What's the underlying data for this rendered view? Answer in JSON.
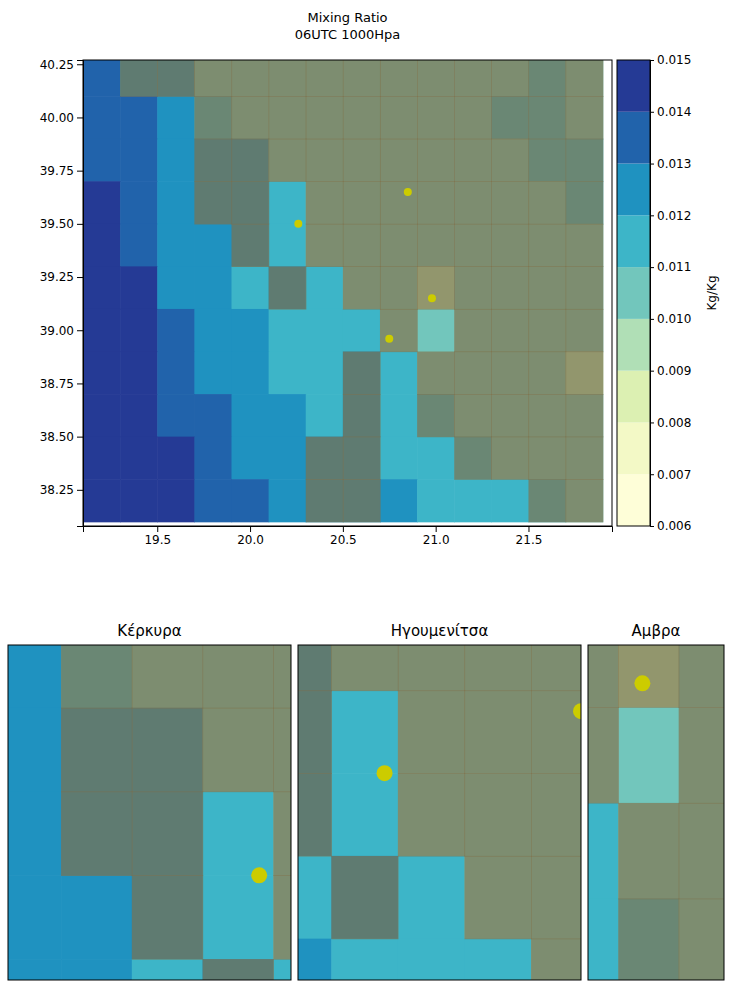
{
  "chart_data": {
    "type": "contourf_map",
    "title": "Mixing Ratio",
    "subtitle": "06UTC 1000Hpa",
    "xlim": [
      19.1,
      21.95
    ],
    "ylim": [
      38.08,
      40.27
    ],
    "xticks": [
      {
        "value": 19.5,
        "label": "19.5"
      },
      {
        "value": 20.0,
        "label": "20.0"
      },
      {
        "value": 20.5,
        "label": "20.5"
      },
      {
        "value": 21.0,
        "label": "21.0"
      },
      {
        "value": 21.5,
        "label": "21.5"
      }
    ],
    "yticks": [
      {
        "value": 38.25,
        "label": "38.25"
      },
      {
        "value": 38.5,
        "label": "38.50"
      },
      {
        "value": 38.75,
        "label": "38.75"
      },
      {
        "value": 39.0,
        "label": "39.00"
      },
      {
        "value": 39.25,
        "label": "39.25"
      },
      {
        "value": 39.5,
        "label": "39.50"
      },
      {
        "value": 39.75,
        "label": "39.75"
      },
      {
        "value": 40.0,
        "label": "40.00"
      },
      {
        "value": 40.25,
        "label": "40.25"
      }
    ],
    "x": [
      19.2,
      19.4,
      19.6,
      19.8,
      20.0,
      20.2,
      20.4,
      20.6,
      20.8,
      21.0,
      21.2,
      21.4,
      21.6,
      21.8
    ],
    "y": [
      40.2,
      40.0,
      39.8,
      39.6,
      39.4,
      39.2,
      39.0,
      38.8,
      38.6,
      38.4,
      38.2
    ],
    "cells": [
      [
        0.0135,
        0.0125,
        0.0125,
        0.0105,
        0.0105,
        0.0105,
        0.0105,
        0.0105,
        0.0105,
        0.0105,
        0.0105,
        0.0105,
        0.0115,
        0.0105
      ],
      [
        0.0135,
        0.0135,
        0.0125,
        0.0115,
        0.0105,
        0.0105,
        0.0105,
        0.0105,
        0.0105,
        0.0105,
        0.0105,
        0.0115,
        0.0115,
        0.0105
      ],
      [
        0.0135,
        0.0135,
        0.0125,
        0.0125,
        0.0125,
        0.0105,
        0.0105,
        0.0105,
        0.0105,
        0.0105,
        0.0105,
        0.0105,
        0.0115,
        0.0115
      ],
      [
        0.0145,
        0.0135,
        0.0125,
        0.0125,
        0.0125,
        0.0115,
        0.0105,
        0.0105,
        0.0105,
        0.0105,
        0.0105,
        0.0105,
        0.0105,
        0.0115
      ],
      [
        0.0145,
        0.0135,
        0.0125,
        0.0125,
        0.0125,
        0.0115,
        0.0105,
        0.0105,
        0.0105,
        0.0105,
        0.0105,
        0.0105,
        0.0105,
        0.0105
      ],
      [
        0.0145,
        0.0145,
        0.0125,
        0.0125,
        0.0115,
        0.0125,
        0.0115,
        0.0105,
        0.0105,
        0.0095,
        0.0105,
        0.0105,
        0.0105,
        0.0105
      ],
      [
        0.0145,
        0.0145,
        0.0135,
        0.0125,
        0.0125,
        0.0115,
        0.0115,
        0.0115,
        0.0105,
        0.0105,
        0.0105,
        0.0105,
        0.0105,
        0.0105
      ],
      [
        0.0145,
        0.0145,
        0.0135,
        0.0125,
        0.0125,
        0.0115,
        0.0115,
        0.0125,
        0.0115,
        0.0105,
        0.0105,
        0.0105,
        0.0105,
        0.0095
      ],
      [
        0.0145,
        0.0145,
        0.0135,
        0.0135,
        0.0125,
        0.0125,
        0.0115,
        0.0125,
        0.0115,
        0.0115,
        0.0105,
        0.0105,
        0.0105,
        0.0105
      ],
      [
        0.0145,
        0.0145,
        0.0145,
        0.0135,
        0.0125,
        0.0125,
        0.0125,
        0.0125,
        0.0115,
        0.0115,
        0.0115,
        0.0105,
        0.0105,
        0.0105
      ],
      [
        0.0145,
        0.0145,
        0.0145,
        0.0135,
        0.0135,
        0.0125,
        0.0125,
        0.0125,
        0.0125,
        0.0115,
        0.0115,
        0.0115,
        0.0115,
        0.0105
      ]
    ],
    "land": [
      [
        0,
        1,
        1,
        1,
        1,
        1,
        1,
        1,
        1,
        1,
        1,
        1,
        1,
        1
      ],
      [
        0,
        0,
        0,
        1,
        1,
        1,
        1,
        1,
        1,
        1,
        1,
        1,
        1,
        1
      ],
      [
        0,
        0,
        0,
        1,
        1,
        1,
        1,
        1,
        1,
        1,
        1,
        1,
        1,
        1
      ],
      [
        0,
        0,
        0,
        1,
        1,
        0,
        1,
        1,
        1,
        1,
        1,
        1,
        1,
        1
      ],
      [
        0,
        0,
        0,
        0,
        1,
        0,
        1,
        1,
        1,
        1,
        1,
        1,
        1,
        1
      ],
      [
        0,
        0,
        0,
        0,
        0,
        1,
        0,
        1,
        1,
        1,
        1,
        1,
        1,
        1
      ],
      [
        0,
        0,
        0,
        0,
        0,
        0,
        0,
        0,
        1,
        0,
        1,
        1,
        1,
        1
      ],
      [
        0,
        0,
        0,
        0,
        0,
        0,
        0,
        1,
        0,
        1,
        1,
        1,
        1,
        1
      ],
      [
        0,
        0,
        0,
        0,
        0,
        0,
        0,
        1,
        0,
        1,
        1,
        1,
        1,
        1
      ],
      [
        0,
        0,
        0,
        0,
        0,
        0,
        1,
        1,
        0,
        0,
        1,
        1,
        1,
        1
      ],
      [
        0,
        0,
        0,
        0,
        0,
        0,
        1,
        1,
        0,
        0,
        0,
        0,
        1,
        1
      ]
    ],
    "points": [
      [
        20.85,
        39.65
      ],
      [
        20.26,
        39.5
      ],
      [
        20.98,
        39.15
      ],
      [
        20.75,
        38.96
      ]
    ],
    "colorbar": {
      "label": "Kg/Kg",
      "range": [
        0.006,
        0.015
      ],
      "ticks": [
        {
          "value": 0.006,
          "label": "0.006"
        },
        {
          "value": 0.007,
          "label": "0.007"
        },
        {
          "value": 0.008,
          "label": "0.008"
        },
        {
          "value": 0.009,
          "label": "0.009"
        },
        {
          "value": 0.01,
          "label": "0.010"
        },
        {
          "value": 0.011,
          "label": "0.011"
        },
        {
          "value": 0.012,
          "label": "0.012"
        },
        {
          "value": 0.013,
          "label": "0.013"
        },
        {
          "value": 0.014,
          "label": "0.014"
        },
        {
          "value": 0.015,
          "label": "0.015"
        }
      ],
      "colors": [
        "#fefed8",
        "#f3f9c6",
        "#dcf0b2",
        "#b0dfb6",
        "#72c6bc",
        "#3db5c8",
        "#1f92c0",
        "#2163ab",
        "#253a95"
      ]
    },
    "insets": [
      {
        "title": "Κέρκυρα",
        "xlim": [
          19.55,
          20.35
        ],
        "ylim": [
          39.25,
          40.05
        ],
        "tick_labels": false
      },
      {
        "title": "Ηγουμενίτσα",
        "xlim": [
          20.0,
          20.85
        ],
        "ylim": [
          39.0,
          39.81
        ],
        "tick_labels": false
      },
      {
        "title": "Αμβρα",
        "xlim": [
          20.8,
          21.25
        ],
        "ylim": [
          38.53,
          39.23
        ],
        "tick_labels": false
      }
    ]
  }
}
